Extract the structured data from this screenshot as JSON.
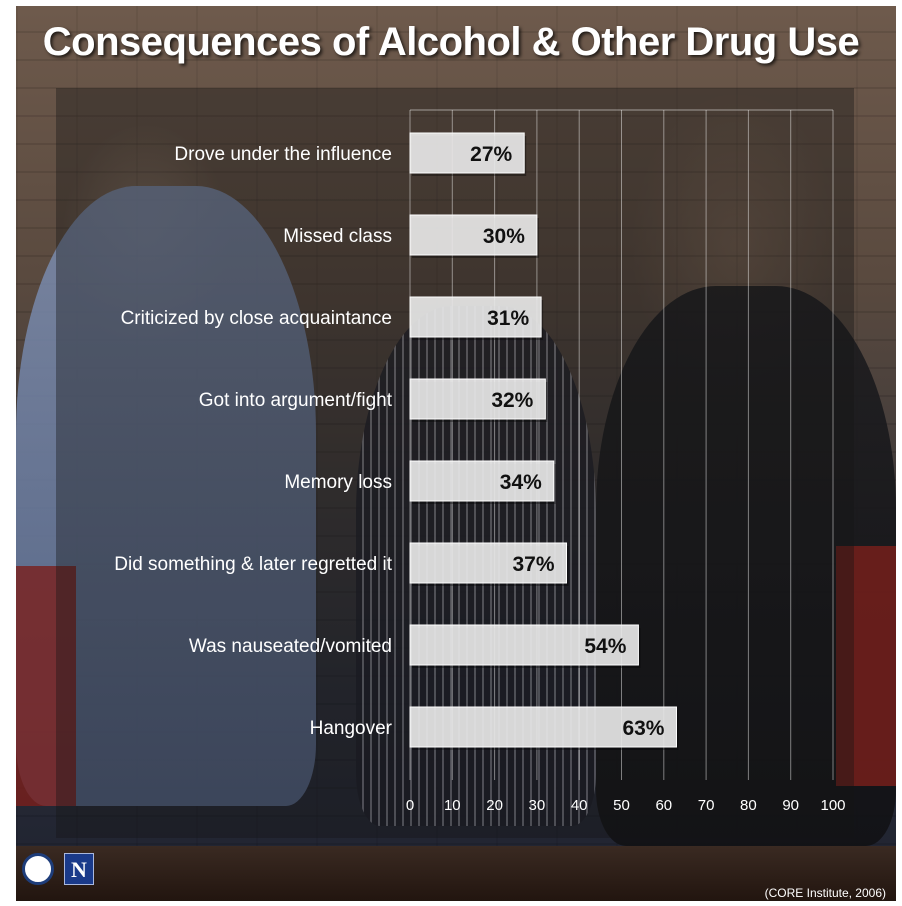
{
  "chart_data": {
    "type": "bar",
    "orientation": "horizontal",
    "title": "Consequences of Alcohol & Other Drug Use",
    "categories": [
      "Drove under the influence",
      "Missed class",
      "Criticized by close acquaintance",
      "Got into argument/fight",
      "Memory loss",
      "Did something & later regretted it",
      "Was nauseated/vomited",
      "Hangover"
    ],
    "values": [
      27,
      30,
      31,
      32,
      34,
      37,
      54,
      63
    ],
    "data_labels": [
      "27%",
      "30%",
      "31%",
      "32%",
      "34%",
      "37%",
      "54%",
      "63%"
    ],
    "xlim": [
      0,
      100
    ],
    "x_ticks": [
      "0",
      "10",
      "20",
      "30",
      "40",
      "50",
      "60",
      "70",
      "80",
      "90",
      "100"
    ],
    "grid": true,
    "bar_color": "#f2f2f2"
  },
  "source": "(CORE Institute, 2006)",
  "logo_n": "N"
}
